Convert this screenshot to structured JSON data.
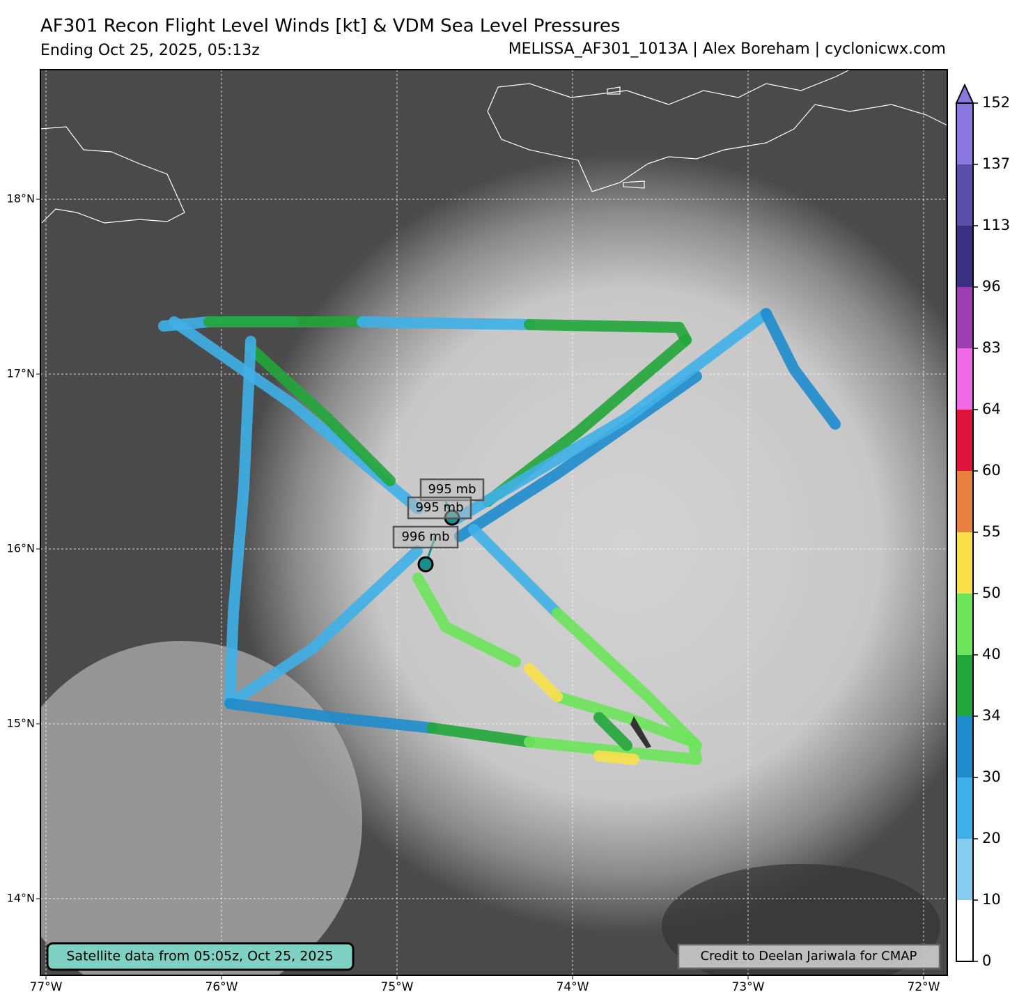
{
  "header": {
    "title": "AF301 Recon Flight Level Winds [kt] & VDM Sea Level Pressures",
    "subtitle_left": "Ending Oct 25, 2025, 05:13z",
    "subtitle_right": "MELISSA_AF301_1013A | Alex Boreham | cyclonicwx.com"
  },
  "map": {
    "lon_labels": [
      "77°W",
      "76°W",
      "75°W",
      "74°W",
      "73°W",
      "72°W"
    ],
    "lat_labels": [
      "18°N",
      "17°N",
      "16°N",
      "15°N",
      "14°N"
    ],
    "pressure_labels": [
      "995 mb",
      "995 mb",
      "996 mb"
    ],
    "satellite_note": "Satellite data from 05:05z, Oct 25, 2025",
    "credit": "Credit to Deelan Jariwala for CMAP"
  },
  "colorbar": {
    "ticks": [
      0,
      10,
      20,
      30,
      34,
      40,
      50,
      55,
      60,
      64,
      83,
      96,
      113,
      137,
      152
    ],
    "colors": [
      "#ffffff",
      "#87cdf0",
      "#3fb0e8",
      "#1e8ccc",
      "#22a63a",
      "#6de45a",
      "#f9e04b",
      "#e88040",
      "#dc143c",
      "#f06ae8",
      "#9b3fb0",
      "#3a2f80",
      "#5a4fa8",
      "#8a78e0"
    ]
  }
}
